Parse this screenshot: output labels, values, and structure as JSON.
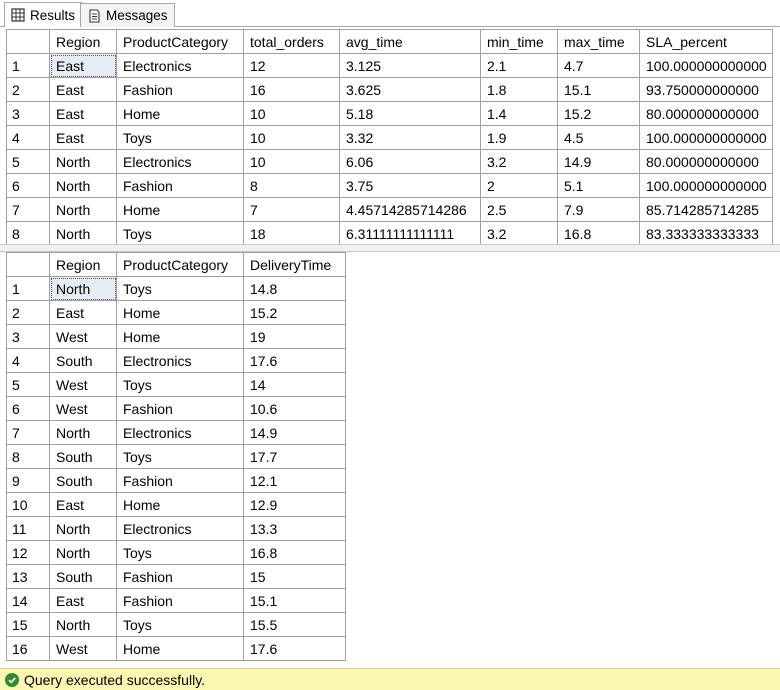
{
  "tabs": {
    "results_label": "Results",
    "messages_label": "Messages"
  },
  "grid1": {
    "columns": [
      "",
      "Region",
      "ProductCategory",
      "total_orders",
      "avg_time",
      "min_time",
      "max_time",
      "SLA_percent"
    ],
    "rows": [
      [
        "1",
        "East",
        "Electronics",
        "12",
        "3.125",
        "2.1",
        "4.7",
        "100.000000000000"
      ],
      [
        "2",
        "East",
        "Fashion",
        "16",
        "3.625",
        "1.8",
        "15.1",
        "93.750000000000"
      ],
      [
        "3",
        "East",
        "Home",
        "10",
        "5.18",
        "1.4",
        "15.2",
        "80.000000000000"
      ],
      [
        "4",
        "East",
        "Toys",
        "10",
        "3.32",
        "1.9",
        "4.5",
        "100.000000000000"
      ],
      [
        "5",
        "North",
        "Electronics",
        "10",
        "6.06",
        "3.2",
        "14.9",
        "80.000000000000"
      ],
      [
        "6",
        "North",
        "Fashion",
        "8",
        "3.75",
        "2",
        "5.1",
        "100.000000000000"
      ],
      [
        "7",
        "North",
        "Home",
        "7",
        "4.45714285714286",
        "2.5",
        "7.9",
        "85.714285714285"
      ],
      [
        "8",
        "North",
        "Toys",
        "18",
        "6.31111111111111",
        "3.2",
        "16.8",
        "83.333333333333"
      ]
    ]
  },
  "grid2": {
    "columns": [
      "",
      "Region",
      "ProductCategory",
      "DeliveryTime"
    ],
    "rows": [
      [
        "1",
        "North",
        "Toys",
        "14.8"
      ],
      [
        "2",
        "East",
        "Home",
        "15.2"
      ],
      [
        "3",
        "West",
        "Home",
        "19"
      ],
      [
        "4",
        "South",
        "Electronics",
        "17.6"
      ],
      [
        "5",
        "West",
        "Toys",
        "14"
      ],
      [
        "6",
        "West",
        "Fashion",
        "10.6"
      ],
      [
        "7",
        "North",
        "Electronics",
        "14.9"
      ],
      [
        "8",
        "South",
        "Toys",
        "17.7"
      ],
      [
        "9",
        "South",
        "Fashion",
        "12.1"
      ],
      [
        "10",
        "East",
        "Home",
        "12.9"
      ],
      [
        "11",
        "North",
        "Electronics",
        "13.3"
      ],
      [
        "12",
        "North",
        "Toys",
        "16.8"
      ],
      [
        "13",
        "South",
        "Fashion",
        "15"
      ],
      [
        "14",
        "East",
        "Fashion",
        "15.1"
      ],
      [
        "15",
        "North",
        "Toys",
        "15.5"
      ],
      [
        "16",
        "West",
        "Home",
        "17.6"
      ]
    ]
  },
  "status": {
    "message": "Query executed successfully."
  },
  "colors": {
    "status_bg": "#fbf7b0",
    "success_green": "#2e8b2e",
    "selected_cell": "#e5ecf4"
  }
}
